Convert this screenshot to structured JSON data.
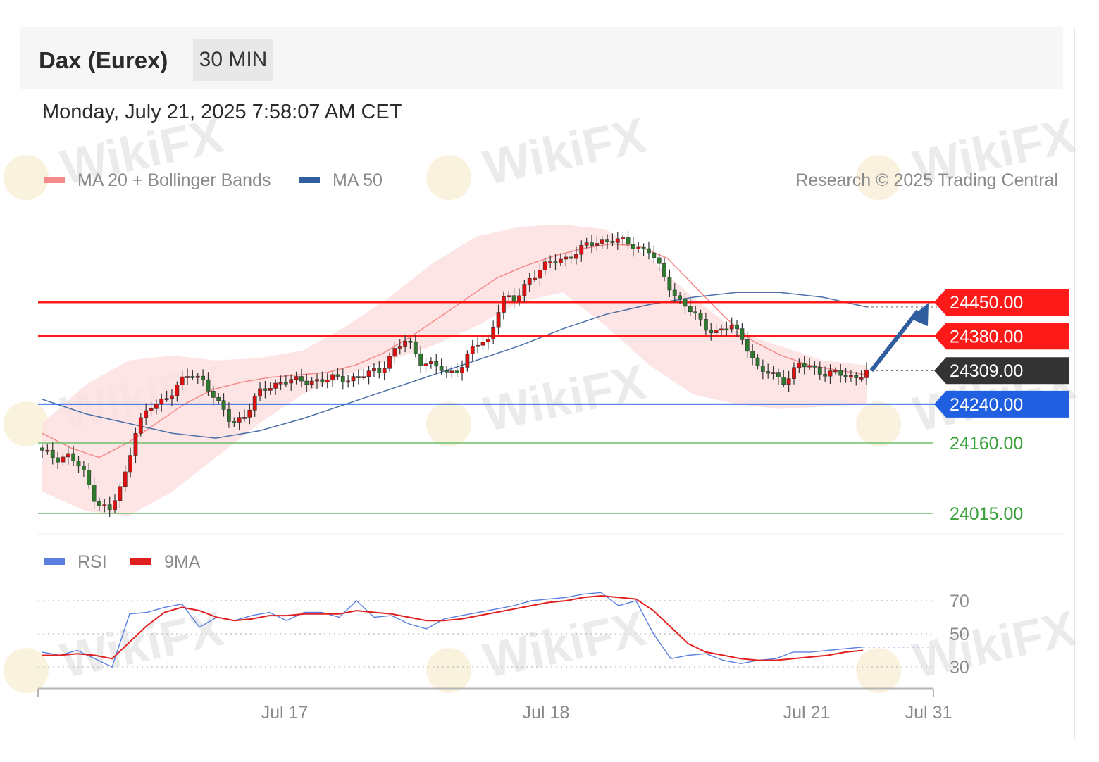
{
  "header": {
    "symbol": "Dax (Eurex)",
    "timeframe": "30 MIN",
    "timestamp": "Monday, July 21, 2025 7:58:07 AM CET"
  },
  "legend_main": [
    {
      "label": "MA 20 + Bollinger Bands",
      "color": "#f48a8a"
    },
    {
      "label": "MA 50",
      "color": "#2f5d9e"
    }
  ],
  "copyright": "Research © 2025 Trading Central",
  "legend_rsi": [
    {
      "label": "RSI",
      "color": "#5a7fe0"
    },
    {
      "label": "9MA",
      "color": "#e02020"
    }
  ],
  "watermark": "WikiFX",
  "colors": {
    "resistance": "#ff1a1a",
    "support": "#1f5fe0",
    "target": "#3aa13a",
    "last": "#333333",
    "up": "#e01010",
    "down": "#2f7a2f",
    "arrow": "#2f5d9e"
  },
  "chart_data": [
    {
      "type": "line",
      "title": "Dax (Eurex) 30 MIN",
      "ylim": [
        24000,
        24600
      ],
      "x_ticks": [
        "Jul 17",
        "Jul 18",
        "Jul 21",
        "Jul 31"
      ],
      "levels": [
        {
          "value": 24450,
          "label": "24450.00",
          "role": "resistance"
        },
        {
          "value": 24380,
          "label": "24380.00",
          "role": "resistance"
        },
        {
          "value": 24309,
          "label": "24309.00",
          "role": "last"
        },
        {
          "value": 24240,
          "label": "24240.00",
          "role": "support"
        },
        {
          "value": 24160,
          "label": "24160.00",
          "role": "target"
        },
        {
          "value": 24015,
          "label": "24015.00",
          "role": "target"
        }
      ],
      "close_path": [
        24140,
        24130,
        24135,
        24100,
        24040,
        24020,
        24080,
        24200,
        24230,
        24250,
        24280,
        24300,
        24290,
        24240,
        24200,
        24220,
        24260,
        24280,
        24290,
        24285,
        24290,
        24290,
        24292,
        24295,
        24300,
        24310,
        24350,
        24370,
        24330,
        24320,
        24300,
        24320,
        24360,
        24370,
        24460,
        24450,
        24500,
        24520,
        24535,
        24545,
        24560,
        24575,
        24580,
        24572,
        24565,
        24555,
        24500,
        24460,
        24430,
        24400,
        24390,
        24400,
        24370,
        24310,
        24300,
        24290,
        24320,
        24315,
        24305,
        24300,
        24295,
        24309
      ],
      "ma20_path": [
        24180,
        24150,
        24130,
        24160,
        24200,
        24240,
        24270,
        24285,
        24295,
        24300,
        24305,
        24320,
        24345,
        24380,
        24420,
        24460,
        24500,
        24525,
        24545,
        24560,
        24570,
        24565,
        24540,
        24480,
        24420,
        24370,
        24340,
        24320,
        24310,
        24300
      ],
      "ma50_path": [
        24250,
        24220,
        24200,
        24180,
        24170,
        24185,
        24210,
        24240,
        24270,
        24300,
        24330,
        24360,
        24395,
        24425,
        24445,
        24460,
        24470,
        24470,
        24460,
        24440
      ],
      "bb_upper": [
        24200,
        24280,
        24330,
        24340,
        24330,
        24335,
        24350,
        24400,
        24460,
        24530,
        24585,
        24605,
        24610,
        24600,
        24540,
        24460,
        24390,
        24360,
        24330,
        24320
      ],
      "bb_lower": [
        24060,
        24020,
        24010,
        24060,
        24130,
        24200,
        24260,
        24300,
        24330,
        24360,
        24400,
        24450,
        24470,
        24400,
        24320,
        24260,
        24240,
        24230,
        24235,
        24240
      ]
    },
    {
      "type": "line",
      "title": "RSI",
      "ylim": [
        10,
        90
      ],
      "y_ticks": [
        70,
        50,
        30
      ],
      "series": [
        {
          "name": "RSI",
          "values": [
            39,
            37,
            40,
            35,
            30,
            62,
            63,
            66,
            68,
            54,
            60,
            58,
            61,
            63,
            58,
            63,
            63,
            60,
            70,
            60,
            61,
            56,
            53,
            59,
            61,
            63,
            65,
            67,
            70,
            71,
            72,
            74,
            75,
            67,
            70,
            50,
            35,
            37,
            38,
            34,
            32,
            34,
            35,
            39,
            39,
            40,
            41,
            42
          ]
        },
        {
          "name": "9MA",
          "values": [
            37,
            37,
            38,
            37,
            35,
            45,
            55,
            63,
            66,
            64,
            60,
            58,
            59,
            61,
            61,
            62,
            62,
            62,
            64,
            63,
            62,
            60,
            58,
            58,
            59,
            61,
            63,
            65,
            67,
            69,
            70,
            72,
            73,
            72,
            71,
            64,
            54,
            44,
            39,
            37,
            35,
            34,
            34,
            35,
            36,
            37,
            39,
            40
          ]
        }
      ]
    }
  ]
}
